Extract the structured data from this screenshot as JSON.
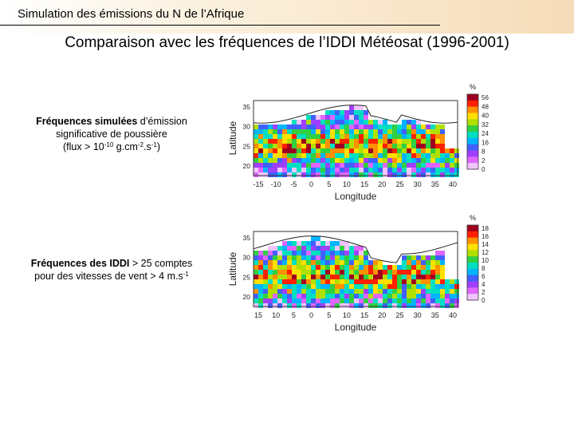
{
  "slide": {
    "header_title": "Simulation des émissions du N de l’Afrique",
    "title": "Comparaison avec les fréquences de l’IDDI Météosat (1996-2001)"
  },
  "captions": {
    "simulated": {
      "bold": "Fréquences simulées",
      "line1_rest": " d’émission",
      "line2": "significative de poussière",
      "line3_pre": "(flux > 10",
      "line3_exp1": "-10",
      "line3_mid": " g.cm",
      "line3_exp2": "-2",
      "line3_mid2": ".s",
      "line3_exp3": "-1",
      "line3_post": ")"
    },
    "iddi": {
      "bold": "Fréquences des IDDI",
      "line1_rest": " > 25 comptes",
      "line2_pre": "pour des vitesses de vent > 4 m.s",
      "line2_exp": "-1"
    }
  },
  "maps": [
    {
      "ylabel": "Latitude",
      "xlabel": "Longitude",
      "yticks": [
        "35",
        "30",
        "25",
        "20"
      ],
      "xticks": [
        "-15",
        "-10",
        "-5",
        "0",
        "5",
        "10",
        "15",
        "20",
        "25",
        "30",
        "35",
        "40"
      ],
      "colorbar_unit": "%",
      "colorbar_ticks": [
        "56",
        "48",
        "40",
        "32",
        "24",
        "16",
        "8",
        "2",
        "0"
      ]
    },
    {
      "ylabel": "Latitude",
      "xlabel": "Longitude",
      "yticks": [
        "35",
        "30",
        "25",
        "20"
      ],
      "xticks": [
        "15",
        "10",
        "5",
        "0",
        "5",
        "10",
        "15",
        "20",
        "25",
        "30",
        "35",
        "40"
      ],
      "colorbar_unit": "%",
      "colorbar_ticks": [
        "18",
        "16",
        "14",
        "12",
        "10",
        "8",
        "6",
        "4",
        "2",
        "0"
      ]
    }
  ]
}
